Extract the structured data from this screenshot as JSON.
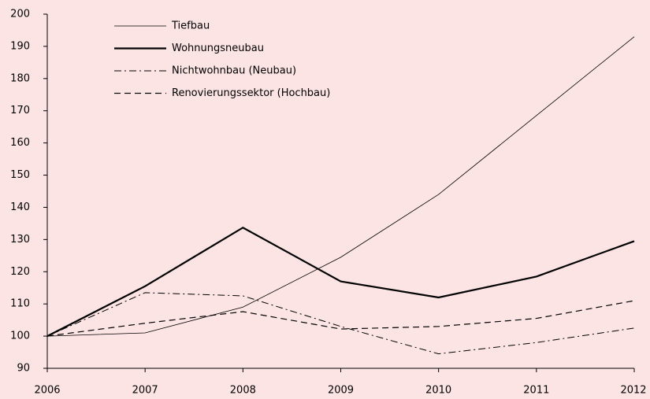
{
  "chart_data": {
    "type": "line",
    "x": [
      2006,
      2007,
      2008,
      2009,
      2010,
      2011,
      2012
    ],
    "xlim": [
      2006,
      2012
    ],
    "xticks": [
      2006,
      2007,
      2008,
      2009,
      2010,
      2011,
      2012
    ],
    "ylim": [
      90,
      200
    ],
    "yticks": [
      90,
      100,
      110,
      120,
      130,
      140,
      150,
      160,
      170,
      180,
      190,
      200
    ],
    "legend": "upper-left",
    "grid": false,
    "series": [
      {
        "name": "Tiefbau",
        "color": "#000000",
        "style": "solid",
        "width": 0.8,
        "values": [
          100,
          101,
          109,
          124.5,
          144,
          168.5,
          193
        ]
      },
      {
        "name": "Wohnungsneubau",
        "color": "#000000",
        "style": "solid",
        "width": 2.2,
        "values": [
          100,
          115.5,
          133.7,
          117,
          112,
          118.5,
          129.5
        ]
      },
      {
        "name": "Nichtwohnbau (Neubau)",
        "color": "#000000",
        "style": "dashdot",
        "width": 1,
        "values": [
          100,
          113.5,
          112.5,
          103,
          94.5,
          98,
          102.5
        ]
      },
      {
        "name": "Renovierungssektor (Hochbau)",
        "color": "#000000",
        "style": "dashed",
        "width": 1.2,
        "values": [
          100,
          104,
          107.6,
          102.2,
          103,
          105.5,
          111
        ]
      }
    ]
  }
}
